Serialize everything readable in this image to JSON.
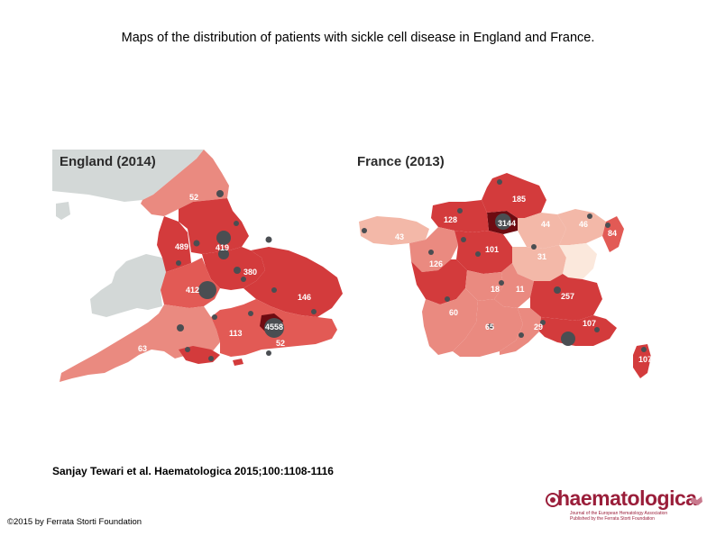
{
  "slide": {
    "title": "Maps of the distribution of patients with sickle cell disease in England and France.",
    "citation": "Sanjay Tewari et al. Haematologica 2015;100:1108-1116",
    "copyright": "©2015 by Ferrata Storti Foundation"
  },
  "logo": {
    "text": "haematologica",
    "tagline_1": "Journal of the European Hematology Association",
    "tagline_2": "Published by the Ferrata Storti Foundation"
  },
  "england": {
    "heading": "England (2014)",
    "labels": [
      "52",
      "489",
      "419",
      "380",
      "412",
      "146",
      "4558",
      "113",
      "52",
      "63"
    ]
  },
  "france": {
    "heading": "France (2013)",
    "labels": [
      "185",
      "128",
      "3144",
      "44",
      "46",
      "84",
      "43",
      "101",
      "31",
      "126",
      "18",
      "11",
      "257",
      "60",
      "65",
      "29",
      "107",
      "107"
    ]
  },
  "colors": {
    "darkest": "#6e0b11",
    "dark_red": "#d33b3c",
    "red": "#e25a55",
    "salmon": "#ea8a80",
    "light_salmon": "#f3b8a8",
    "pale": "#fbe8dc",
    "non_region": "#d3d8d7",
    "dot": "#4a4e52",
    "logo": "#9a1e3a"
  }
}
